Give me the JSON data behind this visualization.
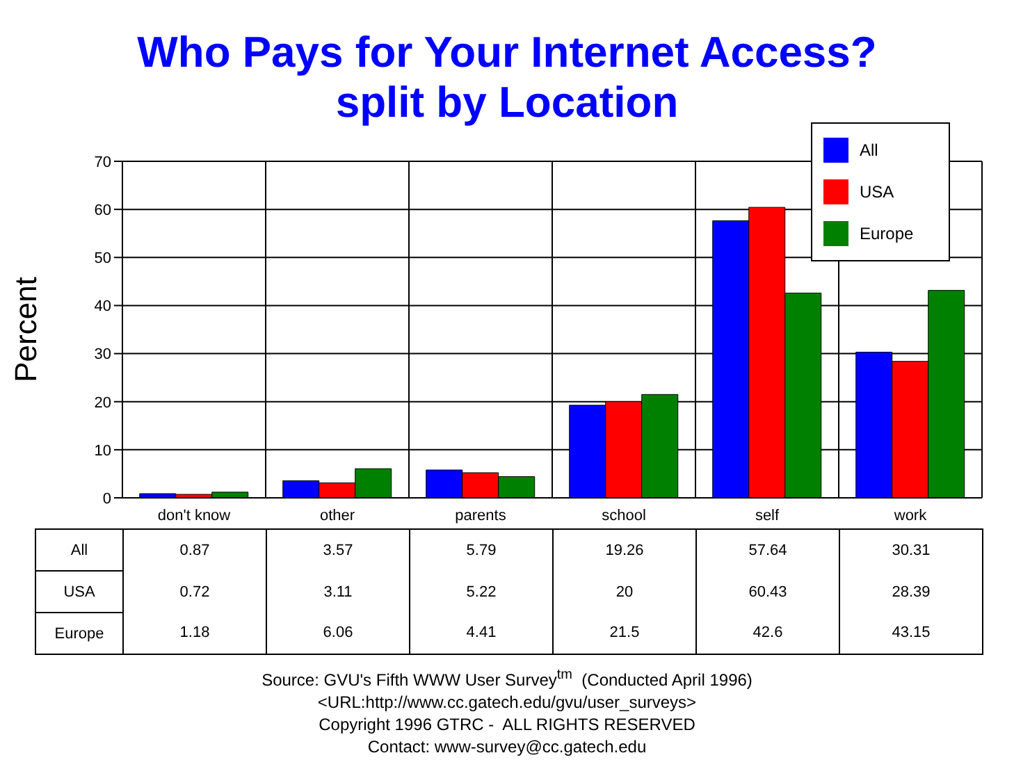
{
  "chart_data": {
    "type": "bar",
    "title": "Who Pays for Your Internet Access?\nsplit by Location",
    "ylabel": "Percent",
    "categories": [
      "don't know",
      "other",
      "parents",
      "school",
      "self",
      "work"
    ],
    "series": [
      {
        "name": "All",
        "color": "#0000ff",
        "values": [
          0.87,
          3.57,
          5.79,
          19.26,
          57.64,
          30.31
        ]
      },
      {
        "name": "USA",
        "color": "#ff0000",
        "values": [
          0.72,
          3.11,
          5.22,
          20,
          60.43,
          28.39
        ]
      },
      {
        "name": "Europe",
        "color": "#008000",
        "values": [
          1.18,
          6.06,
          4.41,
          21.5,
          42.6,
          43.15
        ]
      }
    ],
    "ylim": [
      0,
      70
    ],
    "yticks": [
      0,
      10,
      20,
      30,
      40,
      50,
      60,
      70
    ],
    "grid": true,
    "legend": "top right",
    "data_labels": true,
    "annotations": [
      "Source: GVU's Fifth WWW User Survey$^{tm}$  (Conducted April 1996)",
      "<URL:http://www.cc.gatech.edu/gvu/user_surveys>",
      "Copyright 1996 GTRC -  ALL RIGHTS RESERVED",
      "Contact: www-survey@cc.gatech.edu"
    ]
  }
}
